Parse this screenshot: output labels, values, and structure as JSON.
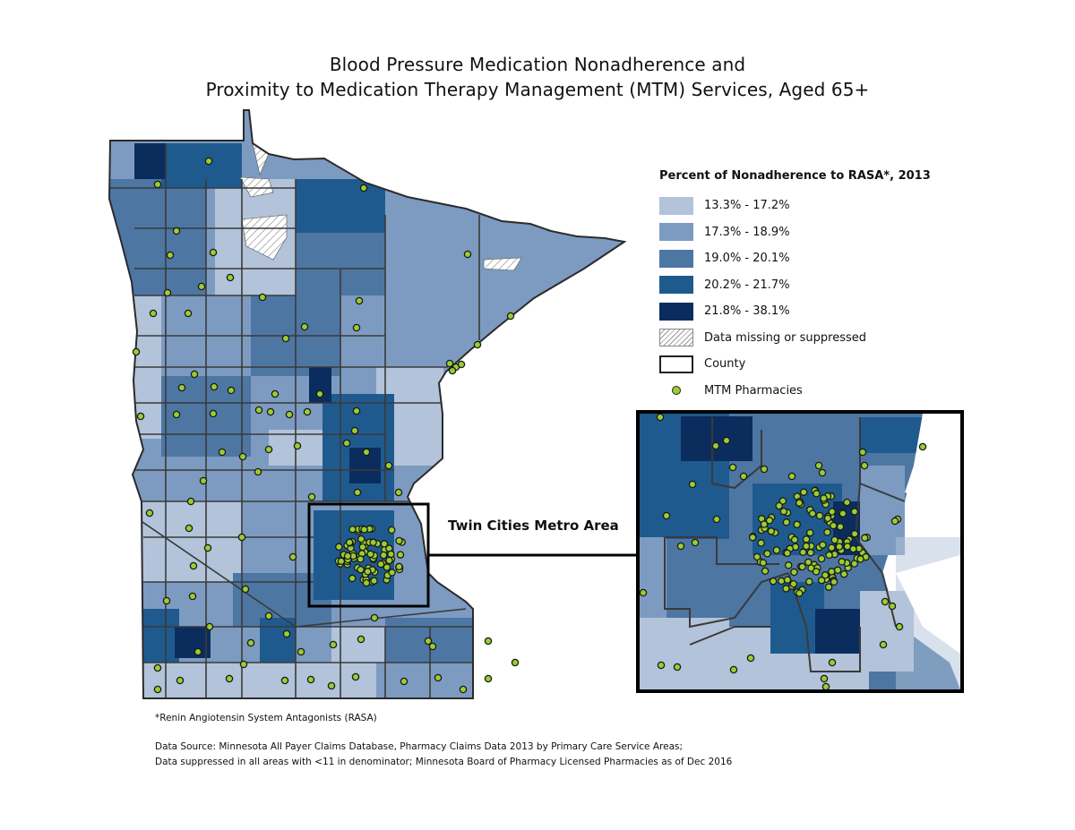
{
  "title": {
    "line1": "Blood Pressure Medication Nonadherence and",
    "line2": "Proximity to Medication Therapy Management (MTM) Services, Aged 65+"
  },
  "legend": {
    "title": "Percent of Nonadherence to RASA*, 2013",
    "classes": [
      {
        "label": "13.3% - 17.2%",
        "color": "#b2c3da"
      },
      {
        "label": "17.3% - 18.9%",
        "color": "#7d9bc1"
      },
      {
        "label": "19.0% - 20.1%",
        "color": "#4d76a3"
      },
      {
        "label": "20.2% - 21.7%",
        "color": "#1f5a8e"
      },
      {
        "label": "21.8% - 38.1%",
        "color": "#0b2d5e"
      }
    ],
    "missing_label": "Data missing or suppressed",
    "county_label": "County",
    "pharmacy_label": "MTM Pharmacies",
    "pharmacy_color": "#9acd32"
  },
  "inset": {
    "label": "Twin Cities Metro Area"
  },
  "footnotes": {
    "rasa": "*Renin Angiotensin System Antagonists (RASA)",
    "source_line1": "Data Source: Minnesota All Payer Claims Database, Pharmacy Claims Data 2013 by Primary Care Service Areas;",
    "source_line2": "Data suppressed in all areas with <11 in denominator;  Minnesota Board of Pharmacy Licensed Pharmacies as of Dec 2016"
  }
}
